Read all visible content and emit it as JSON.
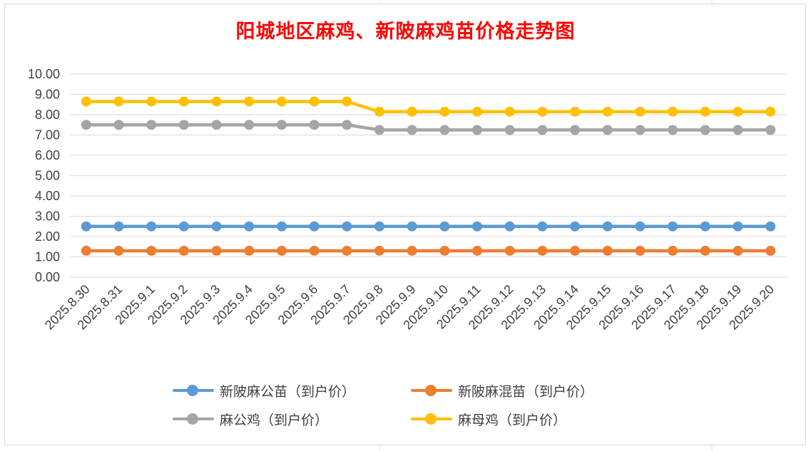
{
  "chart_data": {
    "type": "line",
    "title": "阳城地区麻鸡、新陂麻鸡苗价格走势图",
    "xlabel": "",
    "ylabel": "",
    "ylim": [
      0,
      10
    ],
    "y_ticks": [
      "0.00",
      "1.00",
      "2.00",
      "3.00",
      "4.00",
      "5.00",
      "6.00",
      "7.00",
      "8.00",
      "9.00",
      "10.00"
    ],
    "grid": true,
    "legend_position": "bottom",
    "categories": [
      "2025.8.30",
      "2025.8.31",
      "2025.9.1",
      "2025.9.2",
      "2025.9.3",
      "2025.9.4",
      "2025.9.5",
      "2025.9.6",
      "2025.9.7",
      "2025.9.8",
      "2025.9.9",
      "2025.9.10",
      "2025.9.11",
      "2025.9.12",
      "2025.9.13",
      "2025.9.14",
      "2025.9.15",
      "2025.9.16",
      "2025.9.17",
      "2025.9.18",
      "2025.9.19",
      "2025.9.20"
    ],
    "series": [
      {
        "name": "新陂麻公苗（到户价）",
        "color": "#5b9bd5",
        "values": [
          2.5,
          2.5,
          2.5,
          2.5,
          2.5,
          2.5,
          2.5,
          2.5,
          2.5,
          2.5,
          2.5,
          2.5,
          2.5,
          2.5,
          2.5,
          2.5,
          2.5,
          2.5,
          2.5,
          2.5,
          2.5,
          2.5
        ]
      },
      {
        "name": "新陂麻混苗（到户价）",
        "color": "#ed7d31",
        "values": [
          1.3,
          1.3,
          1.3,
          1.3,
          1.3,
          1.3,
          1.3,
          1.3,
          1.3,
          1.3,
          1.3,
          1.3,
          1.3,
          1.3,
          1.3,
          1.3,
          1.3,
          1.3,
          1.3,
          1.3,
          1.3,
          1.3
        ]
      },
      {
        "name": "麻公鸡（到户价）",
        "color": "#a5a5a5",
        "values": [
          7.5,
          7.5,
          7.5,
          7.5,
          7.5,
          7.5,
          7.5,
          7.5,
          7.5,
          7.25,
          7.25,
          7.25,
          7.25,
          7.25,
          7.25,
          7.25,
          7.25,
          7.25,
          7.25,
          7.25,
          7.25,
          7.25
        ]
      },
      {
        "name": "麻母鸡（到户价）",
        "color": "#ffc000",
        "values": [
          8.65,
          8.65,
          8.65,
          8.65,
          8.65,
          8.65,
          8.65,
          8.65,
          8.65,
          8.15,
          8.15,
          8.15,
          8.15,
          8.15,
          8.15,
          8.15,
          8.15,
          8.15,
          8.15,
          8.15,
          8.15,
          8.15
        ]
      }
    ]
  }
}
